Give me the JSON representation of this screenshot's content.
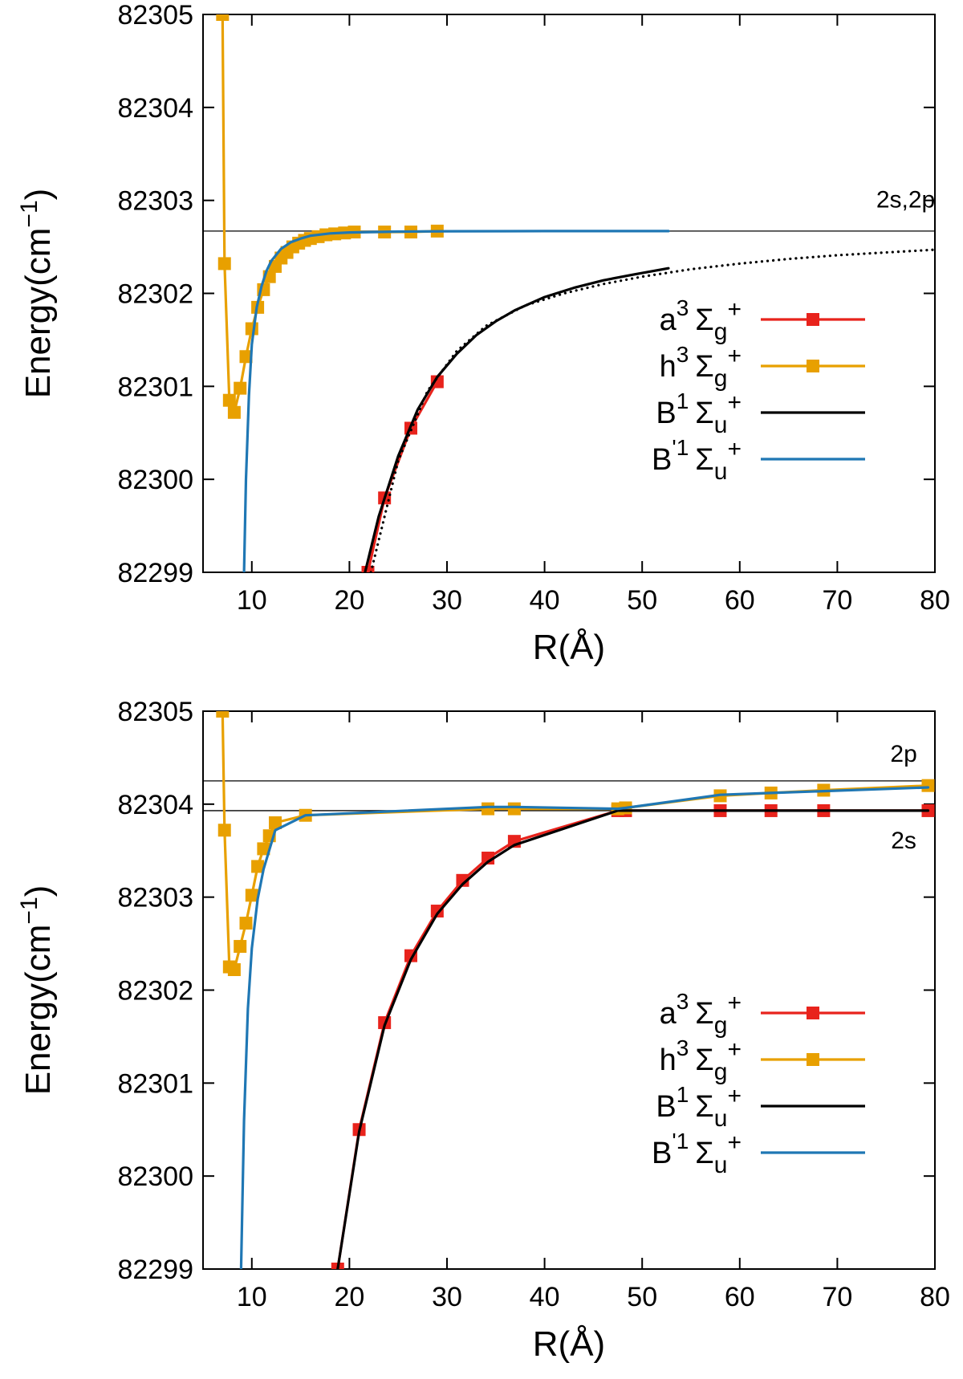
{
  "chart_data": [
    {
      "type": "line",
      "xlabel": "R(Å)",
      "ylabel": "Energy(cm",
      "ylabel_sup": "−1",
      "ylabel_close": ")",
      "xlim": [
        5,
        80
      ],
      "ylim": [
        82299,
        82305
      ],
      "xticks": [
        10,
        20,
        30,
        40,
        50,
        60,
        70,
        80
      ],
      "yticks": [
        82299,
        82300,
        82301,
        82302,
        82303,
        82304,
        82305
      ],
      "hlines": [
        {
          "y": 82302.67,
          "label": "2s,2p",
          "label_x": 77,
          "label_y": 82303.02
        }
      ],
      "legend_position": "center-right",
      "series": [
        {
          "name": "a3 Σg+",
          "base": "a",
          "sup": "3",
          "sym": "Σ",
          "sub": "g",
          "sup2": "+",
          "color": "#e8231c",
          "markers": true,
          "x": [
            21.9,
            23.6,
            26.3,
            29.0
          ],
          "y": [
            82299.0,
            82299.8,
            82300.55,
            82301.05
          ]
        },
        {
          "name": "h3 Σg+",
          "base": "h",
          "sup": "3",
          "sym": "Σ",
          "sub": "g",
          "sup2": "+",
          "color": "#e8a000",
          "markers": true,
          "x": [
            7.0,
            7.2,
            7.7,
            8.2,
            8.8,
            9.4,
            10.0,
            10.6,
            11.2,
            11.8,
            12.4,
            13.0,
            13.6,
            14.2,
            14.8,
            15.4,
            16.0,
            16.8,
            17.6,
            18.5,
            19.5,
            20.5,
            23.6,
            26.3,
            29.0
          ],
          "y": [
            82305.0,
            82302.32,
            82300.85,
            82300.72,
            82300.98,
            82301.32,
            82301.62,
            82301.85,
            82302.04,
            82302.18,
            82302.29,
            82302.38,
            82302.44,
            82302.5,
            82302.54,
            82302.57,
            82302.59,
            82302.61,
            82302.63,
            82302.64,
            82302.65,
            82302.66,
            82302.66,
            82302.66,
            82302.67
          ]
        },
        {
          "name": "B1 Σu+",
          "base": "B",
          "sup": "1",
          "sym": "Σ",
          "sub": "u",
          "sup2": "+",
          "color": "#000000",
          "markers": false,
          "x": [
            21.6,
            23.0,
            25.0,
            27.0,
            29.0,
            31.0,
            33.0,
            35.0,
            37.0,
            40.0,
            43.0,
            46.0,
            49.0,
            52.7
          ],
          "y": [
            82299.0,
            82299.6,
            82300.25,
            82300.75,
            82301.1,
            82301.35,
            82301.55,
            82301.7,
            82301.82,
            82301.96,
            82302.06,
            82302.14,
            82302.2,
            82302.27
          ]
        },
        {
          "name": "B'1 Σu+",
          "base": "B",
          "sup": "'1",
          "sym": "Σ",
          "sub": "u",
          "sup2": "+",
          "color": "#1f77b4",
          "markers": false,
          "x": [
            9.2,
            9.4,
            9.7,
            10.0,
            10.5,
            11.0,
            11.5,
            12.0,
            13.0,
            14.0,
            15.0,
            16.0,
            18.0,
            20.0,
            25.0,
            30.0,
            40.0,
            52.7
          ],
          "y": [
            82299.0,
            82300.0,
            82300.9,
            82301.45,
            82301.85,
            82302.08,
            82302.24,
            82302.35,
            82302.48,
            82302.55,
            82302.59,
            82302.62,
            82302.645,
            82302.655,
            82302.665,
            82302.668,
            82302.67,
            82302.67
          ]
        },
        {
          "name": "extrapolation",
          "legend": false,
          "color": "#000000",
          "dotted": true,
          "markers": false,
          "x": [
            22.2,
            25.0,
            28.0,
            31.0,
            34.0,
            38.0,
            42.0,
            46.0,
            50.0,
            55.0,
            60.0,
            65.0,
            70.0,
            75.0,
            80.0
          ],
          "y": [
            82299.0,
            82300.2,
            82300.95,
            82301.38,
            82301.65,
            82301.87,
            82302.0,
            82302.1,
            82302.18,
            82302.26,
            82302.32,
            82302.37,
            82302.41,
            82302.44,
            82302.47
          ]
        }
      ]
    },
    {
      "type": "line",
      "xlabel": "R(Å)",
      "ylabel": "Energy(cm",
      "ylabel_sup": "−1",
      "ylabel_close": ")",
      "xlim": [
        5,
        80
      ],
      "ylim": [
        82299,
        82305
      ],
      "xticks": [
        10,
        20,
        30,
        40,
        50,
        60,
        70,
        80
      ],
      "yticks": [
        82299,
        82300,
        82301,
        82302,
        82303,
        82304,
        82305
      ],
      "hlines": [
        {
          "y": 82304.25,
          "label": "2p",
          "label_x": 76.8,
          "label_y": 82304.55
        },
        {
          "y": 82303.93,
          "label": "2s",
          "label_x": 76.8,
          "label_y": 82303.62
        }
      ],
      "legend_position": "lower-right",
      "series": [
        {
          "name": "a3 Σg+",
          "base": "a",
          "sup": "3",
          "sym": "Σ",
          "sub": "g",
          "sup2": "+",
          "color": "#e8231c",
          "markers": true,
          "x": [
            18.8,
            21.0,
            23.6,
            26.3,
            29.0,
            31.6,
            34.2,
            36.9,
            47.5,
            48.3,
            58.0,
            63.2,
            68.6,
            79.3
          ],
          "y": [
            82299.0,
            82300.5,
            82301.65,
            82302.37,
            82302.85,
            82303.18,
            82303.42,
            82303.6,
            82303.93,
            82303.93,
            82303.93,
            82303.93,
            82303.93,
            82303.93
          ]
        },
        {
          "name": "h3 Σg+",
          "base": "h",
          "sup": "3",
          "sym": "Σ",
          "sub": "g",
          "sup2": "+",
          "color": "#e8a000",
          "markers": true,
          "x": [
            7.0,
            7.2,
            7.7,
            8.2,
            8.8,
            9.4,
            10.0,
            10.6,
            11.2,
            11.8,
            12.4,
            15.5,
            34.2,
            36.9,
            47.5,
            48.3,
            58.0,
            63.2,
            68.6,
            79.3
          ],
          "y": [
            82305.0,
            82303.72,
            82302.25,
            82302.22,
            82302.47,
            82302.72,
            82303.02,
            82303.33,
            82303.52,
            82303.66,
            82303.8,
            82303.88,
            82303.95,
            82303.95,
            82303.95,
            82303.96,
            82304.09,
            82304.12,
            82304.15,
            82304.2
          ]
        },
        {
          "name": "B1 Σu+",
          "base": "B",
          "sup": "1",
          "sym": "Σ",
          "sub": "u",
          "sup2": "+",
          "color": "#000000",
          "markers": false,
          "x": [
            18.8,
            21.0,
            23.6,
            26.3,
            29.0,
            31.6,
            34.2,
            36.9,
            47.5,
            48.3,
            58.0,
            63.2,
            68.6,
            79.3
          ],
          "y": [
            82299.0,
            82300.48,
            82301.62,
            82302.33,
            82302.82,
            82303.14,
            82303.38,
            82303.56,
            82303.93,
            82303.93,
            82303.93,
            82303.93,
            82303.93,
            82303.93
          ]
        },
        {
          "name": "B'1 Σu+",
          "base": "B",
          "sup": "'1",
          "sym": "Σ",
          "sub": "u",
          "sup2": "+",
          "color": "#1f77b4",
          "markers": false,
          "x": [
            8.9,
            9.2,
            9.6,
            10.0,
            10.6,
            11.2,
            12.4,
            15.5,
            34.2,
            36.9,
            47.5,
            48.3,
            58.0,
            63.2,
            68.6,
            79.3
          ],
          "y": [
            82299.0,
            82300.6,
            82301.8,
            82302.45,
            82302.98,
            82303.3,
            82303.72,
            82303.88,
            82303.97,
            82303.97,
            82303.95,
            82303.96,
            82304.1,
            82304.12,
            82304.14,
            82304.18
          ]
        }
      ]
    }
  ]
}
